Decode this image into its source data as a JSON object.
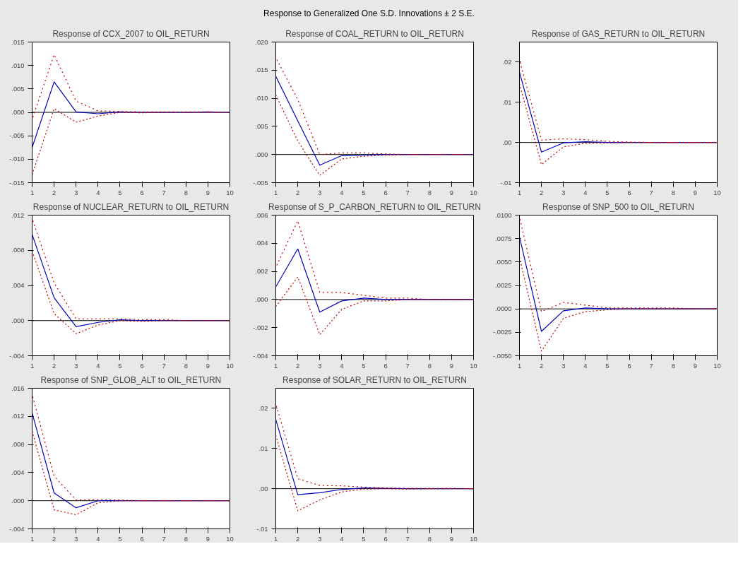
{
  "chart_data": [
    {
      "type": "line",
      "title": "Response of CCX_2007 to OIL_RETURN",
      "annotations": [
        "Response to Generalized One S.D. Innovations ± 2 S.E."
      ],
      "x": [
        1,
        2,
        3,
        4,
        5,
        6,
        7,
        8,
        9,
        10
      ],
      "xlim": [
        1,
        10
      ],
      "xticks": [
        1,
        2,
        3,
        4,
        5,
        6,
        7,
        8,
        9,
        10
      ],
      "ylim": [
        -0.015,
        0.015
      ],
      "yticks": [
        {
          "value": -0.015,
          "label": "-.015"
        },
        {
          "value": -0.01,
          "label": "-.010"
        },
        {
          "value": -0.005,
          "label": "-.005"
        },
        {
          "value": 0,
          "label": ".000"
        },
        {
          "value": 0.005,
          "label": ".005"
        },
        {
          "value": 0.01,
          "label": ".010"
        },
        {
          "value": 0.015,
          "label": ".015"
        }
      ],
      "ref_lines": [
        {
          "axis": "y",
          "value": 0,
          "color": "#000000"
        }
      ],
      "series": [
        {
          "color": "#0000c0",
          "line_style": "solid",
          "values": [
            -0.0075,
            0.0065,
            0.0001,
            -0.0003,
            0.0001,
            0,
            0,
            0,
            0.0001,
            0
          ]
        },
        {
          "color": "#cc0000",
          "line_style": "dotted",
          "values": [
            -0.0015,
            0.0123,
            0.0024,
            0.0003,
            0.0002,
            0.0001,
            0.0001,
            0.0001,
            0.0001,
            0
          ]
        },
        {
          "color": "#cc0000",
          "line_style": "dotted",
          "values": [
            -0.0133,
            0.0008,
            -0.0021,
            -0.0008,
            0,
            -0.0001,
            0,
            0,
            0,
            0
          ]
        }
      ]
    },
    {
      "type": "line",
      "title": "Response of COAL_RETURN to OIL_RETURN",
      "x": [
        1,
        2,
        3,
        4,
        5,
        6,
        7,
        8,
        9,
        10
      ],
      "xlim": [
        1,
        10
      ],
      "xticks": [
        1,
        2,
        3,
        4,
        5,
        6,
        7,
        8,
        9,
        10
      ],
      "ylim": [
        -0.005,
        0.02
      ],
      "yticks": [
        {
          "value": -0.005,
          "label": "-.005"
        },
        {
          "value": 0,
          "label": ".000"
        },
        {
          "value": 0.005,
          "label": ".005"
        },
        {
          "value": 0.01,
          "label": ".010"
        },
        {
          "value": 0.015,
          "label": ".015"
        },
        {
          "value": 0.02,
          "label": ".020"
        }
      ],
      "ref_lines": [
        {
          "axis": "y",
          "value": 0,
          "color": "#000000"
        }
      ],
      "series": [
        {
          "color": "#0000c0",
          "line_style": "solid",
          "values": [
            0.0139,
            0.006,
            -0.0019,
            -0.0002,
            -0.0001,
            0,
            0,
            0,
            0,
            0
          ]
        },
        {
          "color": "#cc0000",
          "line_style": "dotted",
          "values": [
            0.0172,
            0.0098,
            0,
            0.0003,
            0.0003,
            0.0001,
            0,
            0,
            0,
            0
          ]
        },
        {
          "color": "#cc0000",
          "line_style": "dotted",
          "values": [
            0.0106,
            0.0024,
            -0.0037,
            -0.0008,
            -0.0003,
            -0.0001,
            0,
            0,
            0,
            0
          ]
        }
      ]
    },
    {
      "type": "line",
      "title": "Response of GAS_RETURN to OIL_RETURN",
      "x": [
        1,
        2,
        3,
        4,
        5,
        6,
        7,
        8,
        9,
        10
      ],
      "xlim": [
        1,
        10
      ],
      "xticks": [
        1,
        2,
        3,
        4,
        5,
        6,
        7,
        8,
        9,
        10
      ],
      "ylim": [
        -0.01,
        0.025
      ],
      "yticks": [
        {
          "value": -0.01,
          "label": "-.01"
        },
        {
          "value": 0,
          "label": ".00"
        },
        {
          "value": 0.01,
          "label": ".01"
        },
        {
          "value": 0.02,
          "label": ".02"
        }
      ],
      "ref_lines": [
        {
          "axis": "y",
          "value": 0,
          "color": "#000000"
        }
      ],
      "series": [
        {
          "color": "#0000c0",
          "line_style": "solid",
          "values": [
            0.0175,
            -0.0024,
            -0.0001,
            0.0002,
            0,
            0,
            0,
            0,
            0,
            0
          ]
        },
        {
          "color": "#cc0000",
          "line_style": "dotted",
          "values": [
            0.0205,
            0.0006,
            0.0009,
            0.0007,
            0.0003,
            0.0001,
            0,
            0,
            0,
            0
          ]
        },
        {
          "color": "#cc0000",
          "line_style": "dotted",
          "values": [
            0.0146,
            -0.0055,
            -0.0011,
            -0.0002,
            -0.0001,
            0,
            0,
            0,
            0,
            0
          ]
        }
      ]
    },
    {
      "type": "line",
      "title": "Response of NUCLEAR_RETURN to OIL_RETURN",
      "x": [
        1,
        2,
        3,
        4,
        5,
        6,
        7,
        8,
        9,
        10
      ],
      "xlim": [
        1,
        10
      ],
      "xticks": [
        1,
        2,
        3,
        4,
        5,
        6,
        7,
        8,
        9,
        10
      ],
      "ylim": [
        -0.004,
        0.012
      ],
      "yticks": [
        {
          "value": -0.004,
          "label": "-.004"
        },
        {
          "value": 0,
          "label": ".000"
        },
        {
          "value": 0.004,
          "label": ".004"
        },
        {
          "value": 0.008,
          "label": ".008"
        },
        {
          "value": 0.012,
          "label": ".012"
        }
      ],
      "ref_lines": [
        {
          "axis": "y",
          "value": 0,
          "color": "#000000"
        }
      ],
      "series": [
        {
          "color": "#0000c0",
          "line_style": "solid",
          "values": [
            0.0098,
            0.0026,
            -0.0007,
            -0.0002,
            0.0001,
            0,
            0,
            0,
            0,
            0
          ]
        },
        {
          "color": "#cc0000",
          "line_style": "dotted",
          "values": [
            0.0116,
            0.0043,
            0.0002,
            0.0002,
            0.0002,
            0.0001,
            0.0001,
            0,
            0,
            0
          ]
        },
        {
          "color": "#cc0000",
          "line_style": "dotted",
          "values": [
            0.0079,
            0.0008,
            -0.0015,
            -0.0005,
            0,
            -0.0001,
            0,
            0,
            0,
            0
          ]
        }
      ]
    },
    {
      "type": "line",
      "title": "Response of S_P_CARBON_RETURN to OIL_RETURN",
      "x": [
        1,
        2,
        3,
        4,
        5,
        6,
        7,
        8,
        9,
        10
      ],
      "xlim": [
        1,
        10
      ],
      "xticks": [
        1,
        2,
        3,
        4,
        5,
        6,
        7,
        8,
        9,
        10
      ],
      "ylim": [
        -0.004,
        0.006
      ],
      "yticks": [
        {
          "value": -0.004,
          "label": "-.004"
        },
        {
          "value": -0.002,
          "label": "-.002"
        },
        {
          "value": 0,
          "label": ".000"
        },
        {
          "value": 0.002,
          "label": ".002"
        },
        {
          "value": 0.004,
          "label": ".004"
        },
        {
          "value": 0.006,
          "label": ".006"
        }
      ],
      "ref_lines": [
        {
          "axis": "y",
          "value": 0,
          "color": "#000000"
        }
      ],
      "series": [
        {
          "color": "#0000c0",
          "line_style": "solid",
          "values": [
            0.0009,
            0.0036,
            -0.0009,
            -0.0001,
            0.0001,
            0,
            0,
            0,
            0,
            0
          ]
        },
        {
          "color": "#cc0000",
          "line_style": "dotted",
          "values": [
            0.0023,
            0.0056,
            0.0005,
            0.0005,
            0.0003,
            0.0001,
            0.0001,
            0,
            0,
            0
          ]
        },
        {
          "color": "#cc0000",
          "line_style": "dotted",
          "values": [
            -0.0005,
            0.0016,
            -0.0025,
            -0.0007,
            -0.0001,
            -0.0001,
            0,
            0,
            0,
            0
          ]
        }
      ]
    },
    {
      "type": "line",
      "title": "Response of SNP_500 to OIL_RETURN",
      "x": [
        1,
        2,
        3,
        4,
        5,
        6,
        7,
        8,
        9,
        10
      ],
      "xlim": [
        1,
        10
      ],
      "xticks": [
        1,
        2,
        3,
        4,
        5,
        6,
        7,
        8,
        9,
        10
      ],
      "ylim": [
        -0.005,
        0.01
      ],
      "yticks": [
        {
          "value": -0.005,
          "label": "-.0050"
        },
        {
          "value": -0.0025,
          "label": "-.0025"
        },
        {
          "value": 0,
          "label": ".0000"
        },
        {
          "value": 0.0025,
          "label": ".0025"
        },
        {
          "value": 0.005,
          "label": ".0050"
        },
        {
          "value": 0.0075,
          "label": ".0075"
        },
        {
          "value": 0.01,
          "label": ".0100"
        }
      ],
      "ref_lines": [
        {
          "axis": "y",
          "value": 0,
          "color": "#000000"
        }
      ],
      "series": [
        {
          "color": "#0000c0",
          "line_style": "solid",
          "values": [
            0.0077,
            -0.0024,
            -0.0002,
            0.0001,
            0,
            0,
            0,
            0,
            0,
            0
          ]
        },
        {
          "color": "#cc0000",
          "line_style": "dotted",
          "values": [
            0.0098,
            -0.0003,
            0.0007,
            0.0004,
            0.0001,
            0.0001,
            0.0001,
            0.0001,
            0,
            0
          ]
        },
        {
          "color": "#cc0000",
          "line_style": "dotted",
          "values": [
            0.0055,
            -0.0045,
            -0.001,
            -0.0003,
            -0.0001,
            0,
            0,
            0,
            0,
            0
          ]
        }
      ]
    },
    {
      "type": "line",
      "title": "Response of SNP_GLOB_ALT to OIL_RETURN",
      "x": [
        1,
        2,
        3,
        4,
        5,
        6,
        7,
        8,
        9,
        10
      ],
      "xlim": [
        1,
        10
      ],
      "xticks": [
        1,
        2,
        3,
        4,
        5,
        6,
        7,
        8,
        9,
        10
      ],
      "ylim": [
        -0.004,
        0.016
      ],
      "yticks": [
        {
          "value": -0.004,
          "label": "-.004"
        },
        {
          "value": 0,
          "label": ".000"
        },
        {
          "value": 0.004,
          "label": ".004"
        },
        {
          "value": 0.008,
          "label": ".008"
        },
        {
          "value": 0.012,
          "label": ".012"
        },
        {
          "value": 0.016,
          "label": ".016"
        }
      ],
      "ref_lines": [
        {
          "axis": "y",
          "value": 0,
          "color": "#000000"
        }
      ],
      "series": [
        {
          "color": "#0000c0",
          "line_style": "solid",
          "values": [
            0.0125,
            0.0011,
            -0.001,
            0,
            0,
            0,
            0,
            0,
            0,
            0
          ]
        },
        {
          "color": "#cc0000",
          "line_style": "dotted",
          "values": [
            0.0151,
            0.0035,
            0.0001,
            0.0002,
            0.0001,
            0,
            0,
            0,
            0,
            0
          ]
        },
        {
          "color": "#cc0000",
          "line_style": "dotted",
          "values": [
            0.0099,
            -0.0013,
            -0.002,
            -0.0003,
            0,
            0,
            0,
            0,
            0,
            0
          ]
        }
      ]
    },
    {
      "type": "line",
      "title": "Response of SOLAR_RETURN to OIL_RETURN",
      "x": [
        1,
        2,
        3,
        4,
        5,
        6,
        7,
        8,
        9,
        10
      ],
      "xlim": [
        1,
        10
      ],
      "xticks": [
        1,
        2,
        3,
        4,
        5,
        6,
        7,
        8,
        9,
        10
      ],
      "ylim": [
        -0.01,
        0.025
      ],
      "yticks": [
        {
          "value": -0.01,
          "label": "-.01"
        },
        {
          "value": 0,
          "label": ".00"
        },
        {
          "value": 0.01,
          "label": ".01"
        },
        {
          "value": 0.02,
          "label": ".02"
        }
      ],
      "ref_lines": [
        {
          "axis": "y",
          "value": 0,
          "color": "#000000"
        }
      ],
      "series": [
        {
          "color": "#0000c0",
          "line_style": "solid",
          "values": [
            0.0172,
            -0.0015,
            -0.001,
            -0.0002,
            0.0002,
            0.0001,
            0,
            0,
            0,
            0
          ]
        },
        {
          "color": "#cc0000",
          "line_style": "dotted",
          "values": [
            0.0211,
            0.0025,
            0.0008,
            0.0007,
            0.0004,
            0.0002,
            0.0001,
            0.0001,
            0.0001,
            0
          ]
        },
        {
          "color": "#cc0000",
          "line_style": "dotted",
          "values": [
            0.0133,
            -0.0055,
            -0.0028,
            -0.0008,
            -0.0001,
            0,
            -0.0001,
            0,
            0,
            0
          ]
        }
      ]
    }
  ]
}
